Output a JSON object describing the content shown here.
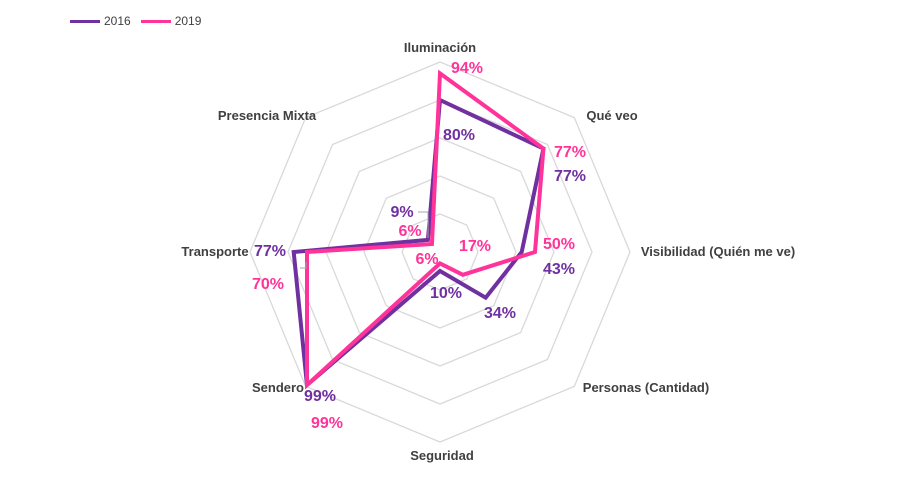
{
  "chart_data": {
    "type": "radar",
    "categories": [
      "Iluminación",
      "Qué veo",
      "Visibilidad (Quién me ve)",
      "Personas (Cantidad)",
      "Seguridad",
      "Sendero",
      "Transporte",
      "Presencia Mixta"
    ],
    "series": [
      {
        "name": "2016",
        "color": "#7030A0",
        "values": [
          80,
          77,
          43,
          34,
          10,
          99,
          77,
          9
        ],
        "labels": [
          "80%",
          "77%",
          "43%",
          "34%",
          "10%",
          "99%",
          "77%",
          "9%"
        ]
      },
      {
        "name": "2019",
        "color": "#FF3399",
        "values": [
          94,
          77,
          50,
          17,
          6,
          99,
          70,
          6
        ],
        "labels": [
          "94%",
          "77%",
          "50%",
          "17%",
          "6%",
          "99%",
          "70%",
          "6%"
        ]
      }
    ],
    "rlim": [
      0,
      100
    ],
    "grid": true,
    "legend_position": "top-left"
  }
}
